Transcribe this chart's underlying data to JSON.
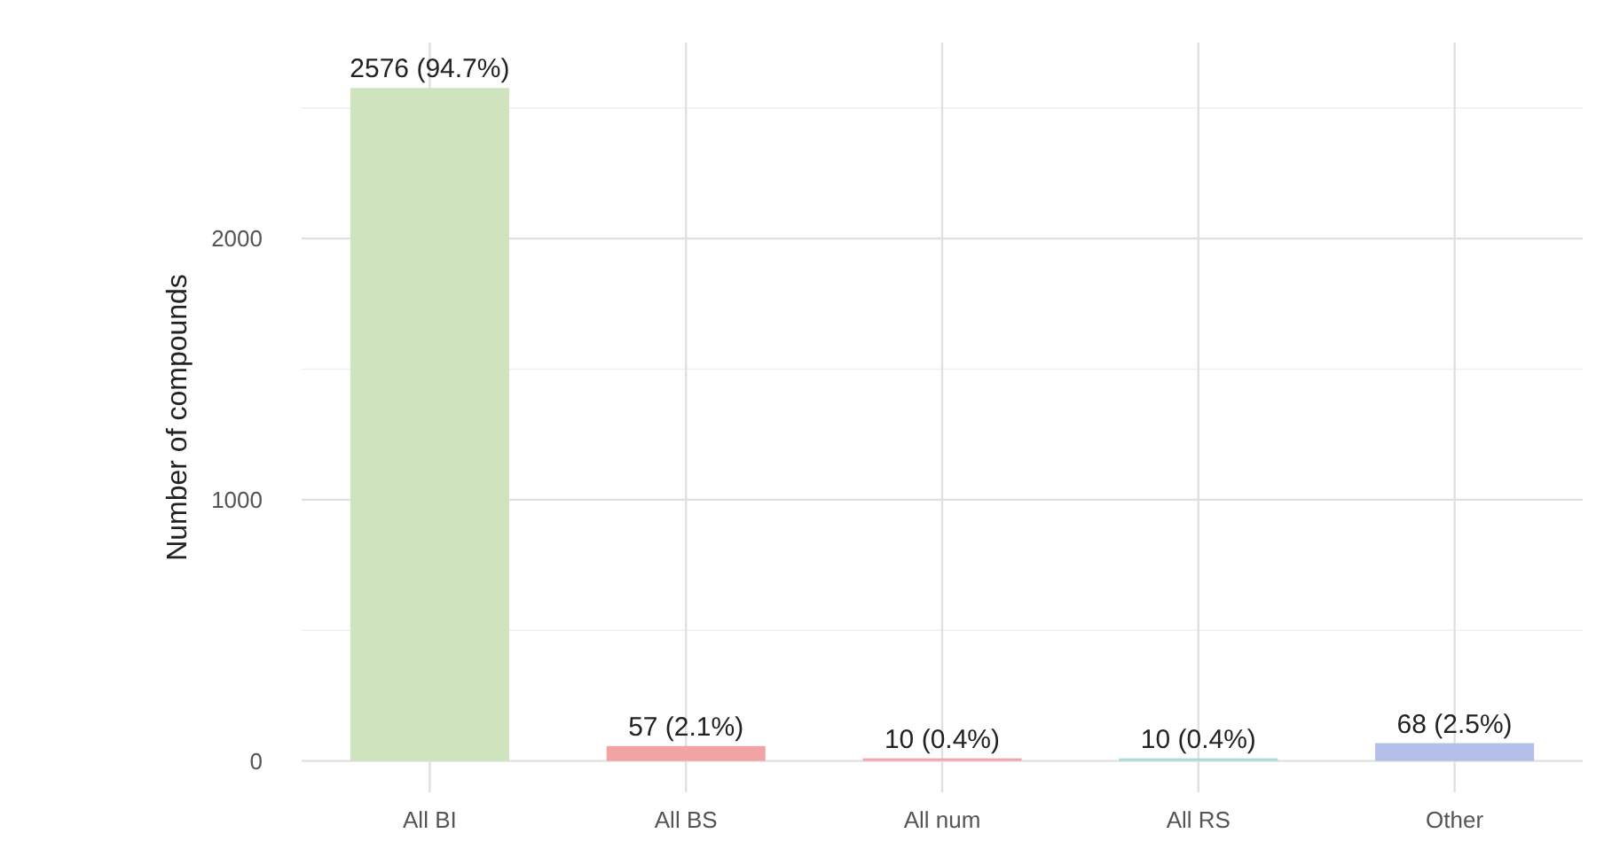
{
  "chart_data": {
    "type": "bar",
    "ylabel": "Number of compounds",
    "categories": [
      "All BI",
      "All BS",
      "All num",
      "All RS",
      "Other"
    ],
    "values": [
      2576,
      57,
      10,
      10,
      68
    ],
    "colors": [
      "#cfe3bf",
      "#f2a3a3",
      "#f2a6b0",
      "#a9dcd6",
      "#b3bfe8"
    ],
    "value_labels": [
      "2576 (94.7%)",
      "57 (2.1%)",
      "10 (0.4%)",
      "10 (0.4%)",
      "68 (2.5%)"
    ],
    "ylim": [
      -120,
      2750
    ],
    "yticks": [
      0,
      {
        "value": 500,
        "label": null
      },
      1000,
      {
        "value": 1500,
        "label": null
      },
      2000,
      {
        "value": 2500,
        "label": null
      }
    ],
    "grid": true
  }
}
